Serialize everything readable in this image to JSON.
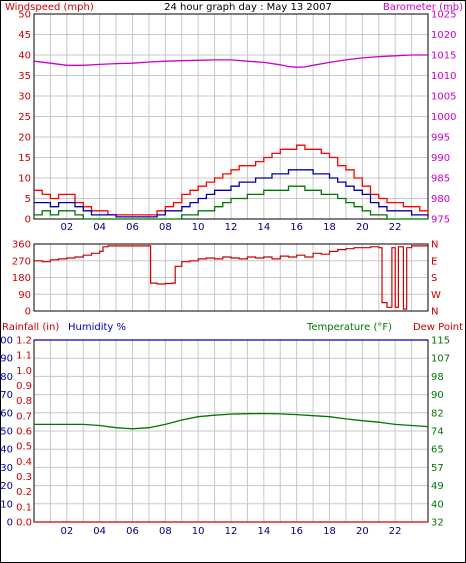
{
  "header": {
    "left_label": "Windspeed (mph)",
    "title": "24 hour graph day : May 13 2007",
    "right_label": "Barometer (mb)"
  },
  "colors": {
    "wind": "#cc0000",
    "gust": "#ff0000",
    "avg_wind": "#0000aa",
    "calm_wind": "#007700",
    "barometer": "#cc00cc",
    "direction": "#cc0000",
    "rain": "#cc0000",
    "humidity": "#0000aa",
    "temperature": "#007700",
    "dewpoint": "#cc0000",
    "grid": "#c8c8c8",
    "frame": "#000000"
  },
  "lower_header": {
    "rain_label": "Rainfall (in)",
    "humidity_label": "Humidity %",
    "temperature_label": "Temperature (°F)",
    "dewpoint_label": "Dew Point"
  },
  "x_ticks": [
    "02",
    "04",
    "06",
    "08",
    "10",
    "12",
    "14",
    "16",
    "18",
    "20",
    "22"
  ],
  "chart_data": [
    {
      "type": "line",
      "title": "24 hour graph day : May 13 2007",
      "xlabel": "",
      "ylabel": "Windspeed (mph)",
      "ylabel_right": "Barometer (mb)",
      "xlim": [
        0,
        24
      ],
      "ylim": [
        0,
        50
      ],
      "ylim_right": [
        975,
        1025
      ],
      "y_ticks": [
        "0",
        "5",
        "10",
        "15",
        "20",
        "25",
        "30",
        "35",
        "40",
        "45",
        "50"
      ],
      "y_ticks_right": [
        "975",
        "980",
        "985",
        "990",
        "995",
        "1000",
        "1005",
        "1010",
        "1015",
        "1020",
        "1025"
      ],
      "grid": true,
      "series": [
        {
          "name": "Gust",
          "axis": "left",
          "x": [
            0,
            0.5,
            1,
            1.5,
            2,
            2.5,
            3,
            3.5,
            4,
            4.5,
            5,
            5.5,
            6,
            6.5,
            7,
            7.5,
            8,
            8.5,
            9,
            9.5,
            10,
            10.5,
            11,
            11.5,
            12,
            12.5,
            13,
            13.5,
            14,
            14.5,
            15,
            15.5,
            16,
            16.5,
            17,
            17.5,
            18,
            18.5,
            19,
            19.5,
            20,
            20.5,
            21,
            21.5,
            22,
            22.5,
            23,
            23.5,
            24
          ],
          "values": [
            7,
            6,
            5,
            6,
            6,
            4,
            3,
            2,
            2,
            1,
            1,
            1,
            1,
            1,
            1,
            2,
            3,
            4,
            6,
            7,
            8,
            9,
            10,
            11,
            12,
            13,
            13,
            14,
            15,
            16,
            17,
            17,
            18,
            17,
            17,
            16,
            15,
            13,
            12,
            10,
            8,
            6,
            5,
            4,
            4,
            3,
            3,
            2,
            1
          ]
        },
        {
          "name": "Average",
          "axis": "left",
          "x": [
            0,
            0.5,
            1,
            1.5,
            2,
            2.5,
            3,
            3.5,
            4,
            4.5,
            5,
            5.5,
            6,
            6.5,
            7,
            7.5,
            8,
            8.5,
            9,
            9.5,
            10,
            10.5,
            11,
            11.5,
            12,
            12.5,
            13,
            13.5,
            14,
            14.5,
            15,
            15.5,
            16,
            16.5,
            17,
            17.5,
            18,
            18.5,
            19,
            19.5,
            20,
            20.5,
            21,
            21.5,
            22,
            22.5,
            23,
            23.5,
            24
          ],
          "values": [
            4,
            4,
            3,
            4,
            4,
            3,
            2,
            1,
            1,
            1,
            0.5,
            0.5,
            0.5,
            0.5,
            0.5,
            1,
            2,
            2,
            3,
            4,
            5,
            6,
            7,
            7,
            8,
            9,
            9,
            10,
            10,
            11,
            11,
            12,
            12,
            12,
            11,
            11,
            10,
            9,
            8,
            7,
            6,
            4,
            3,
            2,
            2,
            2,
            1,
            1,
            0.5
          ]
        },
        {
          "name": "Low",
          "axis": "left",
          "x": [
            0,
            0.5,
            1,
            1.5,
            2,
            2.5,
            3,
            3.5,
            4,
            4.5,
            5,
            5.5,
            6,
            6.5,
            7,
            7.5,
            8,
            8.5,
            9,
            9.5,
            10,
            10.5,
            11,
            11.5,
            12,
            12.5,
            13,
            13.5,
            14,
            14.5,
            15,
            15.5,
            16,
            16.5,
            17,
            17.5,
            18,
            18.5,
            19,
            19.5,
            20,
            20.5,
            21,
            21.5,
            22,
            22.5,
            23,
            23.5,
            24
          ],
          "values": [
            1,
            2,
            1,
            2,
            2,
            1,
            0,
            0,
            0,
            0,
            0,
            0,
            0,
            0,
            0,
            0,
            0,
            0,
            1,
            1,
            2,
            2,
            3,
            4,
            5,
            5,
            6,
            6,
            7,
            7,
            7,
            8,
            8,
            7,
            7,
            6,
            6,
            5,
            4,
            3,
            2,
            1,
            1,
            0,
            0,
            0,
            0,
            0,
            0
          ]
        },
        {
          "name": "Barometer",
          "axis": "right",
          "x": [
            0,
            1,
            2,
            3,
            4,
            5,
            6,
            7,
            8,
            9,
            10,
            11,
            12,
            13,
            14,
            15,
            15.5,
            16,
            16.5,
            17,
            18,
            19,
            20,
            21,
            22,
            23,
            24
          ],
          "values": [
            1013.5,
            1013,
            1012.5,
            1012.5,
            1012.7,
            1012.9,
            1013,
            1013.3,
            1013.5,
            1013.6,
            1013.7,
            1013.8,
            1013.8,
            1013.5,
            1013.2,
            1012.6,
            1012.2,
            1012,
            1012.1,
            1012.5,
            1013.2,
            1013.8,
            1014.3,
            1014.6,
            1014.8,
            1015,
            1015
          ]
        }
      ]
    },
    {
      "type": "line",
      "ylabel": "",
      "xlim": [
        0,
        24
      ],
      "ylim": [
        0,
        360
      ],
      "y_ticks": [
        "0",
        "90",
        "180",
        "270",
        "360"
      ],
      "y_ticks_right": [
        "N",
        "W",
        "S",
        "E",
        "N"
      ],
      "grid": true,
      "series": [
        {
          "name": "Wind direction",
          "x": [
            0,
            0.5,
            1,
            1.5,
            2,
            2.5,
            3,
            3.5,
            4,
            4.2,
            4.5,
            5,
            5.5,
            6,
            6.5,
            6.9,
            7.1,
            7.5,
            8,
            8.4,
            8.6,
            9,
            9.5,
            10,
            10.5,
            11,
            11.5,
            12,
            12.5,
            13,
            13.5,
            14,
            14.5,
            15,
            15.5,
            16,
            16.5,
            17,
            17.5,
            18,
            18.5,
            19,
            19.5,
            20,
            20.5,
            21,
            21.2,
            21.5,
            21.8,
            22,
            22.2,
            22.5,
            22.7,
            23,
            23.5,
            24
          ],
          "values": [
            270,
            265,
            275,
            280,
            285,
            290,
            300,
            310,
            320,
            345,
            350,
            350,
            350,
            350,
            350,
            350,
            150,
            145,
            148,
            150,
            240,
            265,
            270,
            280,
            285,
            280,
            290,
            285,
            280,
            290,
            285,
            290,
            280,
            295,
            290,
            300,
            290,
            310,
            305,
            320,
            330,
            335,
            340,
            340,
            345,
            340,
            45,
            20,
            340,
            20,
            345,
            10,
            340,
            350,
            350,
            350
          ]
        }
      ]
    },
    {
      "type": "line",
      "xlim": [
        0,
        24
      ],
      "ylabel": "Rainfall (in)",
      "ylabel_2": "Humidity %",
      "ylabel_right": "Temperature (°F)",
      "ylabel_right_2": "Dew Point",
      "ylim_rain": [
        0,
        1.2
      ],
      "ylim_humidity": [
        0,
        100
      ],
      "ylim_temperature": [
        32,
        115
      ],
      "y_ticks_rain": [
        "0.0",
        "0.1",
        "0.2",
        "0.3",
        "0.4",
        "0.5",
        "0.6",
        "0.7",
        "0.8",
        "0.9",
        "1.0",
        "1.1",
        "1.2"
      ],
      "y_ticks_humidity": [
        "0",
        "10",
        "20",
        "30",
        "40",
        "50",
        "60",
        "70",
        "80",
        "90",
        "100"
      ],
      "y_ticks_temperature": [
        "32",
        "40",
        "49",
        "57",
        "65",
        "74",
        "82",
        "90",
        "98",
        "107",
        "115"
      ],
      "grid": true,
      "series": [
        {
          "name": "Rainfall",
          "axis": "rain",
          "x": [
            0,
            24
          ],
          "values": [
            0,
            0
          ]
        },
        {
          "name": "Humidity",
          "axis": "humidity",
          "x": [
            0,
            24
          ],
          "values": [
            100,
            100
          ]
        },
        {
          "name": "Temperature",
          "axis": "temperature",
          "x": [
            0,
            1,
            2,
            3,
            4,
            5,
            6,
            7,
            8,
            9,
            10,
            11,
            12,
            13,
            14,
            15,
            16,
            17,
            18,
            19,
            20,
            21,
            22,
            23,
            24
          ],
          "values": [
            76.5,
            76.5,
            76.5,
            76.5,
            76,
            75,
            74.5,
            75,
            76.5,
            78.5,
            80,
            80.7,
            81.2,
            81.4,
            81.5,
            81.3,
            81,
            80.5,
            80,
            79,
            78.2,
            77.5,
            76.5,
            76,
            75.5
          ]
        }
      ]
    }
  ]
}
